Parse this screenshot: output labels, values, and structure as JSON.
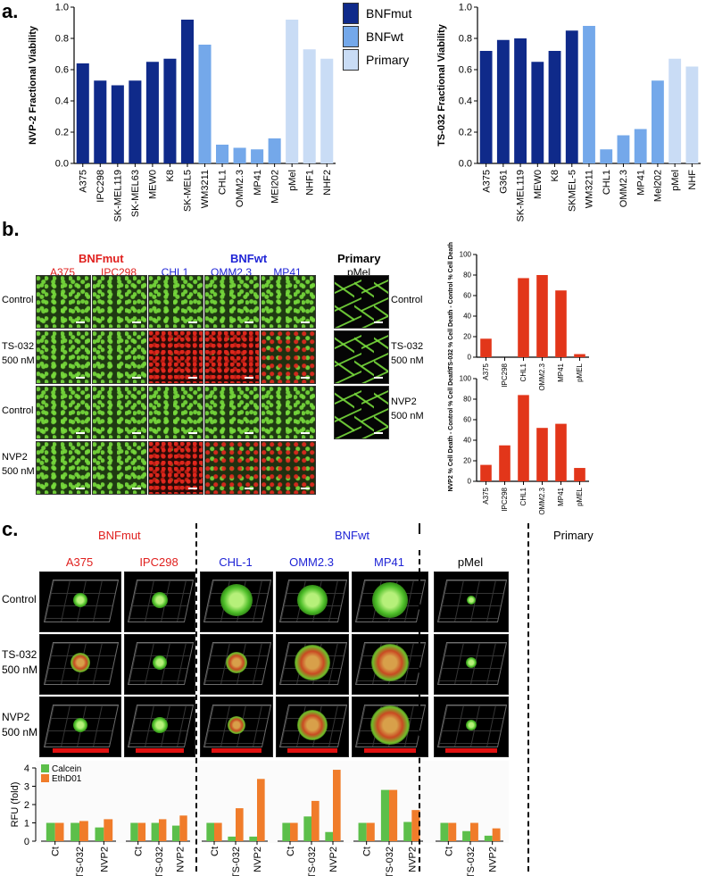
{
  "panels": {
    "a": "a.",
    "b": "b.",
    "c": "c."
  },
  "legend": [
    {
      "label": "BNFmut",
      "color": "#0f2a8a"
    },
    {
      "label": "BNFwt",
      "color": "#74a8ea"
    },
    {
      "label": "Primary",
      "color": "#c9dcf5"
    }
  ],
  "chart_data": [
    {
      "type": "bar",
      "ylabel": "NVP-2 Fractional Viability",
      "ylim": [
        0,
        1.0
      ],
      "yticks": [
        "0.0",
        "0.2",
        "0.4",
        "0.6",
        "0.8",
        "1.0"
      ],
      "categories": [
        "A375",
        "IPC298",
        "SK-MEL119",
        "SK-MEL63",
        "MEW0",
        "K8",
        "SK-MEL5",
        "WM3211",
        "CHL1",
        "OMM2.3",
        "MP41",
        "MEI202",
        "pMel",
        "NHF1",
        "NHF2"
      ],
      "values": [
        0.64,
        0.53,
        0.5,
        0.53,
        0.65,
        0.67,
        0.92,
        0.76,
        0.12,
        0.1,
        0.09,
        0.16,
        0.92,
        0.73,
        0.67
      ],
      "groups": [
        "mut",
        "mut",
        "mut",
        "mut",
        "mut",
        "mut",
        "mut",
        "wt",
        "wt",
        "wt",
        "wt",
        "wt",
        "pri",
        "pri",
        "pri"
      ]
    },
    {
      "type": "bar",
      "ylabel": "TS-032 Fractional Viability",
      "ylim": [
        0,
        1.0
      ],
      "yticks": [
        "0.0",
        "0.2",
        "0.4",
        "0.6",
        "0.8",
        "1.0"
      ],
      "categories": [
        "A375",
        "G361",
        "SK-MEL119",
        "MEW0",
        "K8",
        "SKMEL-5",
        "WM3211",
        "CHL1",
        "OMM2.3",
        "MP41",
        "Mel202",
        "pMel",
        "NHF"
      ],
      "values": [
        0.72,
        0.79,
        0.8,
        0.65,
        0.72,
        0.85,
        0.88,
        0.09,
        0.18,
        0.22,
        0.53,
        0.67,
        0.62
      ],
      "groups": [
        "mut",
        "mut",
        "mut",
        "mut",
        "mut",
        "mut",
        "wt",
        "wt",
        "wt",
        "wt",
        "wt",
        "pri",
        "pri"
      ]
    },
    {
      "type": "bar",
      "ylabel": "TS-032 % Cell Death - Control % Cell Death",
      "ylim": [
        0,
        100
      ],
      "yticks": [
        "0",
        "20",
        "40",
        "60",
        "80",
        "100"
      ],
      "categories": [
        "A375",
        "IPC298",
        "CHL1",
        "OMM2.3",
        "MP41",
        "pMEL"
      ],
      "values": [
        18,
        0,
        77,
        80,
        65,
        3
      ],
      "color": "#e2361a"
    },
    {
      "type": "bar",
      "ylabel": "NVP2 % Cell Death - Control % Cell Death",
      "ylim": [
        0,
        100
      ],
      "yticks": [
        "0",
        "20",
        "40",
        "60",
        "80",
        "100"
      ],
      "categories": [
        "A375",
        "IPC298",
        "CHL1",
        "OMM2.3",
        "MP41",
        "pMEL"
      ],
      "values": [
        16,
        35,
        84,
        52,
        56,
        13
      ],
      "color": "#e2361a"
    },
    {
      "type": "bar",
      "ylabel": "RFU (fold)",
      "ylim": [
        0,
        4
      ],
      "yticks": [
        "0",
        "1",
        "2",
        "3",
        "4"
      ],
      "series": [
        {
          "name": "Calcein",
          "color": "#5cbf4a"
        },
        {
          "name": "EthD01",
          "color": "#f07c2a"
        }
      ],
      "categories": [
        "Ct",
        "TS-032",
        "NVP2"
      ],
      "groups": [
        {
          "cell": "A375",
          "calcein": [
            1.0,
            1.0,
            0.75
          ],
          "ethd": [
            1.0,
            1.1,
            1.2
          ]
        },
        {
          "cell": "IPC298",
          "calcein": [
            1.0,
            1.0,
            0.85
          ],
          "ethd": [
            1.0,
            1.2,
            1.4
          ]
        },
        {
          "cell": "CHL-1",
          "calcein": [
            1.0,
            0.25,
            0.25
          ],
          "ethd": [
            1.0,
            1.8,
            3.4
          ]
        },
        {
          "cell": "OMM2.3",
          "calcein": [
            1.0,
            1.35,
            0.5
          ],
          "ethd": [
            1.0,
            2.2,
            3.9
          ]
        },
        {
          "cell": "MP41",
          "calcein": [
            1.0,
            2.8,
            1.05
          ],
          "ethd": [
            1.0,
            2.8,
            1.7
          ]
        },
        {
          "cell": "pMel",
          "calcein": [
            1.0,
            0.55,
            0.3
          ],
          "ethd": [
            1.0,
            1.0,
            0.7
          ]
        }
      ]
    }
  ],
  "panel_b": {
    "group_mut": "BNFmut",
    "group_wt": "BNFwt",
    "group_primary": "Primary",
    "cells": [
      {
        "name": "A375",
        "cls": "red"
      },
      {
        "name": "IPC298",
        "cls": "red"
      },
      {
        "name": "CHL1",
        "cls": "blue"
      },
      {
        "name": "OMM2.3",
        "cls": "blue"
      },
      {
        "name": "MP41",
        "cls": "blue"
      }
    ],
    "primary_cell": "pMel",
    "rows": [
      {
        "line1": "Control",
        "line2": ""
      },
      {
        "line1": "TS-032",
        "line2": "500 nM"
      },
      {
        "line1": "Control",
        "line2": ""
      },
      {
        "line1": "NVP2",
        "line2": "500 nM"
      }
    ],
    "primary_rows": [
      {
        "line1": "Control",
        "line2": ""
      },
      {
        "line1": "TS-032",
        "line2": "500 nM"
      },
      {
        "line1": "NVP2",
        "line2": "500 nM"
      }
    ]
  },
  "panel_c": {
    "group_mut": "BNFmut",
    "group_wt": "BNFwt",
    "group_primary": "Primary",
    "cells": [
      {
        "name": "A375",
        "cls": "red"
      },
      {
        "name": "IPC298",
        "cls": "red"
      },
      {
        "name": "CHL-1",
        "cls": "blue"
      },
      {
        "name": "OMM2.3",
        "cls": "blue"
      },
      {
        "name": "MP41",
        "cls": "blue"
      },
      {
        "name": "pMel",
        "cls": "black"
      }
    ],
    "rows": [
      {
        "line1": "Control",
        "line2": ""
      },
      {
        "line1": "TS-032",
        "line2": "500 nM"
      },
      {
        "line1": "NVP2",
        "line2": "500 nM"
      }
    ]
  }
}
